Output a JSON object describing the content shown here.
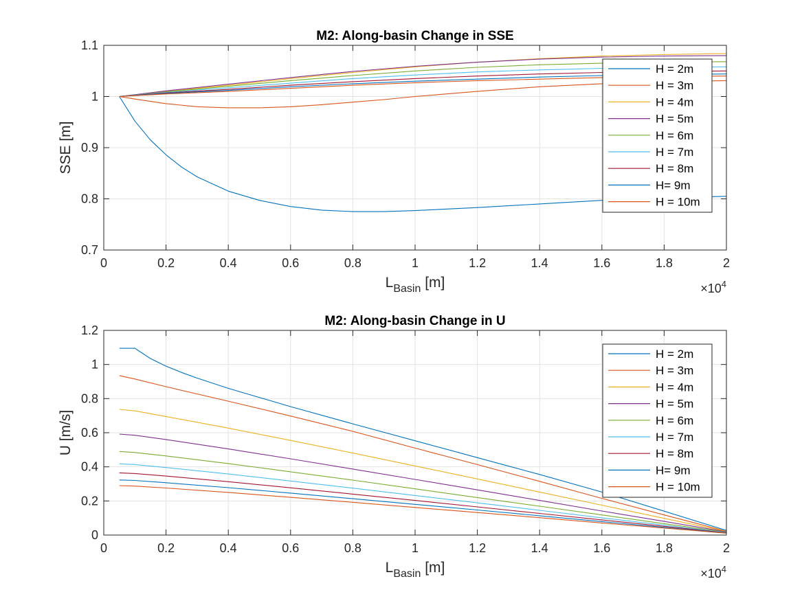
{
  "chart_data": [
    {
      "type": "line",
      "title": "M2: Along-basin Change in SSE",
      "xlabel_main": "L",
      "xlabel_sub": "Basin",
      "xlabel_unit": " [m]",
      "ylabel": "SSE [m]",
      "xlim": [
        0,
        20000
      ],
      "ylim": [
        0.7,
        1.1
      ],
      "grid": true,
      "legend_position": "top-right",
      "x_ticks": [
        0,
        2000,
        4000,
        6000,
        8000,
        10000,
        12000,
        14000,
        16000,
        18000,
        20000
      ],
      "x_tick_labels": [
        "0",
        "0.2",
        "0.4",
        "0.6",
        "0.8",
        "1",
        "1.2",
        "1.4",
        "1.6",
        "1.8",
        "2"
      ],
      "y_ticks": [
        0.7,
        0.8,
        0.9,
        1.0,
        1.1
      ],
      "y_tick_labels": [
        "0.7",
        "0.8",
        "0.9",
        "1",
        "1.1"
      ],
      "x_exponent_base": "×10",
      "x_exponent_power": "4",
      "series": [
        {
          "name": "H = 2m",
          "color": "#0072BD",
          "x": [
            500,
            1000,
            1500,
            2000,
            2500,
            3000,
            4000,
            5000,
            6000,
            7000,
            8000,
            9000,
            10000,
            12000,
            14000,
            16000,
            18000,
            20000
          ],
          "values": [
            1.0,
            0.952,
            0.915,
            0.886,
            0.862,
            0.843,
            0.815,
            0.797,
            0.785,
            0.778,
            0.775,
            0.775,
            0.777,
            0.783,
            0.79,
            0.797,
            0.802,
            0.805
          ]
        },
        {
          "name": "H = 3m",
          "color": "#D95319",
          "x": [
            500,
            1000,
            2000,
            3000,
            4000,
            5000,
            6000,
            7000,
            8000,
            9000,
            10000,
            12000,
            14000,
            16000,
            18000,
            20000
          ],
          "values": [
            1.0,
            0.995,
            0.986,
            0.98,
            0.978,
            0.978,
            0.98,
            0.984,
            0.989,
            0.994,
            1.0,
            1.01,
            1.019,
            1.025,
            1.029,
            1.031
          ]
        },
        {
          "name": "H = 4m",
          "color": "#EDB120",
          "x": [
            500,
            2000,
            4000,
            6000,
            8000,
            10000,
            12000,
            14000,
            16000,
            18000,
            20000
          ],
          "values": [
            1.0,
            1.01,
            1.022,
            1.035,
            1.047,
            1.058,
            1.067,
            1.074,
            1.079,
            1.082,
            1.084
          ]
        },
        {
          "name": "H = 5m",
          "color": "#7E2F8E",
          "x": [
            500,
            2000,
            4000,
            6000,
            8000,
            10000,
            12000,
            14000,
            16000,
            18000,
            20000
          ],
          "values": [
            1.0,
            1.011,
            1.024,
            1.037,
            1.049,
            1.059,
            1.067,
            1.073,
            1.077,
            1.079,
            1.08
          ]
        },
        {
          "name": "H = 6m",
          "color": "#77AC30",
          "x": [
            500,
            2000,
            4000,
            6000,
            8000,
            10000,
            12000,
            14000,
            16000,
            18000,
            20000
          ],
          "values": [
            1.0,
            1.009,
            1.02,
            1.031,
            1.041,
            1.05,
            1.057,
            1.062,
            1.065,
            1.067,
            1.068
          ]
        },
        {
          "name": "H = 7m",
          "color": "#4DBEEE",
          "x": [
            500,
            2000,
            4000,
            6000,
            8000,
            10000,
            12000,
            14000,
            16000,
            18000,
            20000
          ],
          "values": [
            1.0,
            1.008,
            1.017,
            1.026,
            1.035,
            1.042,
            1.048,
            1.052,
            1.055,
            1.057,
            1.058
          ]
        },
        {
          "name": "H = 8m",
          "color": "#A2142F",
          "x": [
            500,
            2000,
            4000,
            6000,
            8000,
            10000,
            12000,
            14000,
            16000,
            18000,
            20000
          ],
          "values": [
            1.0,
            1.007,
            1.014,
            1.022,
            1.029,
            1.035,
            1.04,
            1.044,
            1.047,
            1.049,
            1.05
          ]
        },
        {
          "name": "H= 9m",
          "color": "#0072BD",
          "x": [
            500,
            2000,
            4000,
            6000,
            8000,
            10000,
            12000,
            14000,
            16000,
            18000,
            20000
          ],
          "values": [
            1.0,
            1.006,
            1.012,
            1.019,
            1.025,
            1.03,
            1.034,
            1.038,
            1.041,
            1.043,
            1.044
          ]
        },
        {
          "name": "H = 10m",
          "color": "#D95319",
          "x": [
            500,
            2000,
            4000,
            6000,
            8000,
            10000,
            12000,
            14000,
            16000,
            18000,
            20000
          ],
          "values": [
            1.0,
            1.005,
            1.01,
            1.016,
            1.022,
            1.027,
            1.031,
            1.034,
            1.037,
            1.039,
            1.04
          ]
        }
      ]
    },
    {
      "type": "line",
      "title": "M2: Along-basin Change in U",
      "xlabel_main": "L",
      "xlabel_sub": "Basin",
      "xlabel_unit": " [m]",
      "ylabel": "U [m/s]",
      "xlim": [
        0,
        20000
      ],
      "ylim": [
        0,
        1.2
      ],
      "grid": true,
      "legend_position": "top-right",
      "x_ticks": [
        0,
        2000,
        4000,
        6000,
        8000,
        10000,
        12000,
        14000,
        16000,
        18000,
        20000
      ],
      "x_tick_labels": [
        "0",
        "0.2",
        "0.4",
        "0.6",
        "0.8",
        "1",
        "1.2",
        "1.4",
        "1.6",
        "1.8",
        "2"
      ],
      "y_ticks": [
        0,
        0.2,
        0.4,
        0.6,
        0.8,
        1.0,
        1.2
      ],
      "y_tick_labels": [
        "0",
        "0.2",
        "0.4",
        "0.6",
        "0.8",
        "1",
        "1.2"
      ],
      "x_exponent_base": "×10",
      "x_exponent_power": "4",
      "series": [
        {
          "name": "H = 2m",
          "color": "#0072BD",
          "x": [
            500,
            1000,
            1500,
            2000,
            2500,
            3000,
            4000,
            6000,
            8000,
            10000,
            12000,
            14000,
            16000,
            18000,
            20000
          ],
          "values": [
            1.095,
            1.095,
            1.035,
            0.99,
            0.953,
            0.92,
            0.86,
            0.753,
            0.652,
            0.553,
            0.454,
            0.355,
            0.252,
            0.14,
            0.027
          ]
        },
        {
          "name": "H = 3m",
          "color": "#D95319",
          "x": [
            500,
            1000,
            2000,
            4000,
            6000,
            8000,
            10000,
            12000,
            14000,
            16000,
            18000,
            20000
          ],
          "values": [
            0.935,
            0.915,
            0.87,
            0.785,
            0.698,
            0.608,
            0.51,
            0.413,
            0.315,
            0.215,
            0.118,
            0.022
          ]
        },
        {
          "name": "H = 4m",
          "color": "#EDB120",
          "x": [
            500,
            1000,
            2000,
            4000,
            6000,
            8000,
            10000,
            12000,
            14000,
            16000,
            18000,
            20000
          ],
          "values": [
            0.737,
            0.728,
            0.695,
            0.627,
            0.555,
            0.481,
            0.405,
            0.329,
            0.252,
            0.175,
            0.098,
            0.021
          ]
        },
        {
          "name": "H = 5m",
          "color": "#7E2F8E",
          "x": [
            500,
            1000,
            2000,
            4000,
            6000,
            8000,
            10000,
            12000,
            14000,
            16000,
            18000,
            20000
          ],
          "values": [
            0.592,
            0.585,
            0.56,
            0.505,
            0.447,
            0.387,
            0.326,
            0.265,
            0.203,
            0.141,
            0.08,
            0.019
          ]
        },
        {
          "name": "H = 6m",
          "color": "#77AC30",
          "x": [
            500,
            1000,
            2000,
            4000,
            6000,
            8000,
            10000,
            12000,
            14000,
            16000,
            18000,
            20000
          ],
          "values": [
            0.49,
            0.484,
            0.464,
            0.419,
            0.371,
            0.322,
            0.271,
            0.22,
            0.169,
            0.118,
            0.067,
            0.016
          ]
        },
        {
          "name": "H = 7m",
          "color": "#4DBEEE",
          "x": [
            500,
            1000,
            2000,
            4000,
            6000,
            8000,
            10000,
            12000,
            14000,
            16000,
            18000,
            20000
          ],
          "values": [
            0.418,
            0.413,
            0.396,
            0.358,
            0.317,
            0.275,
            0.232,
            0.189,
            0.145,
            0.101,
            0.058,
            0.014
          ]
        },
        {
          "name": "H = 8m",
          "color": "#A2142F",
          "x": [
            500,
            1000,
            2000,
            4000,
            6000,
            8000,
            10000,
            12000,
            14000,
            16000,
            18000,
            20000
          ],
          "values": [
            0.365,
            0.361,
            0.346,
            0.313,
            0.277,
            0.24,
            0.203,
            0.165,
            0.127,
            0.089,
            0.051,
            0.013
          ]
        },
        {
          "name": "H= 9m",
          "color": "#0072BD",
          "x": [
            500,
            1000,
            2000,
            4000,
            6000,
            8000,
            10000,
            12000,
            14000,
            16000,
            18000,
            20000
          ],
          "values": [
            0.323,
            0.32,
            0.307,
            0.278,
            0.246,
            0.213,
            0.18,
            0.147,
            0.113,
            0.079,
            0.045,
            0.012
          ]
        },
        {
          "name": "H = 10m",
          "color": "#D95319",
          "x": [
            500,
            1000,
            2000,
            4000,
            6000,
            8000,
            10000,
            12000,
            14000,
            16000,
            18000,
            20000
          ],
          "values": [
            0.29,
            0.287,
            0.276,
            0.25,
            0.221,
            0.192,
            0.162,
            0.132,
            0.102,
            0.071,
            0.041,
            0.011
          ]
        }
      ]
    }
  ]
}
